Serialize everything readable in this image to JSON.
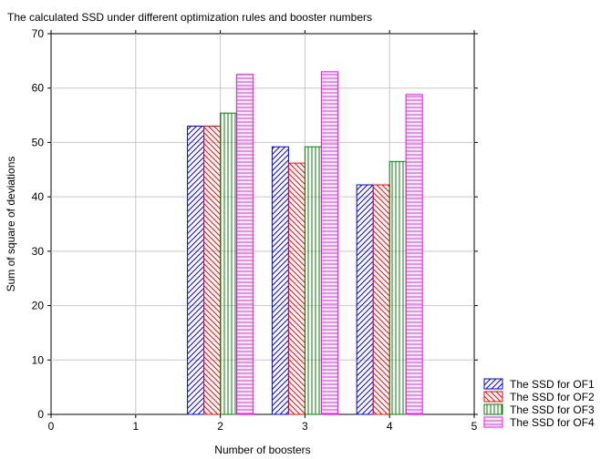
{
  "chart_data": {
    "type": "bar",
    "title": "The calculated SSD under different optimization rules and booster numbers",
    "xlabel": "Number of boosters",
    "ylabel": "Sum of square of deviations",
    "xlim": [
      0,
      5
    ],
    "ylim": [
      0,
      70
    ],
    "xticks": [
      "0",
      "1",
      "2",
      "3",
      "4",
      "5"
    ],
    "yticks": [
      "0",
      "10",
      "20",
      "30",
      "40",
      "50",
      "60",
      "70"
    ],
    "grid": true,
    "legend_position": "bottom-right",
    "x": [
      2,
      3,
      4
    ],
    "series": [
      {
        "name": "The SSD for OF1",
        "values": [
          53.0,
          49.2,
          42.2
        ],
        "color": "#0000ff",
        "pattern": "diagonal-up"
      },
      {
        "name": "The SSD for OF2",
        "values": [
          53.0,
          46.2,
          42.2
        ],
        "color": "#ff0000",
        "pattern": "diagonal-down"
      },
      {
        "name": "The SSD for OF3",
        "values": [
          55.4,
          49.2,
          46.5
        ],
        "color": "#008000",
        "pattern": "vertical"
      },
      {
        "name": "The SSD for OF4",
        "values": [
          62.5,
          63.0,
          58.8
        ],
        "color": "#ff00ff",
        "pattern": "horizontal"
      }
    ]
  }
}
